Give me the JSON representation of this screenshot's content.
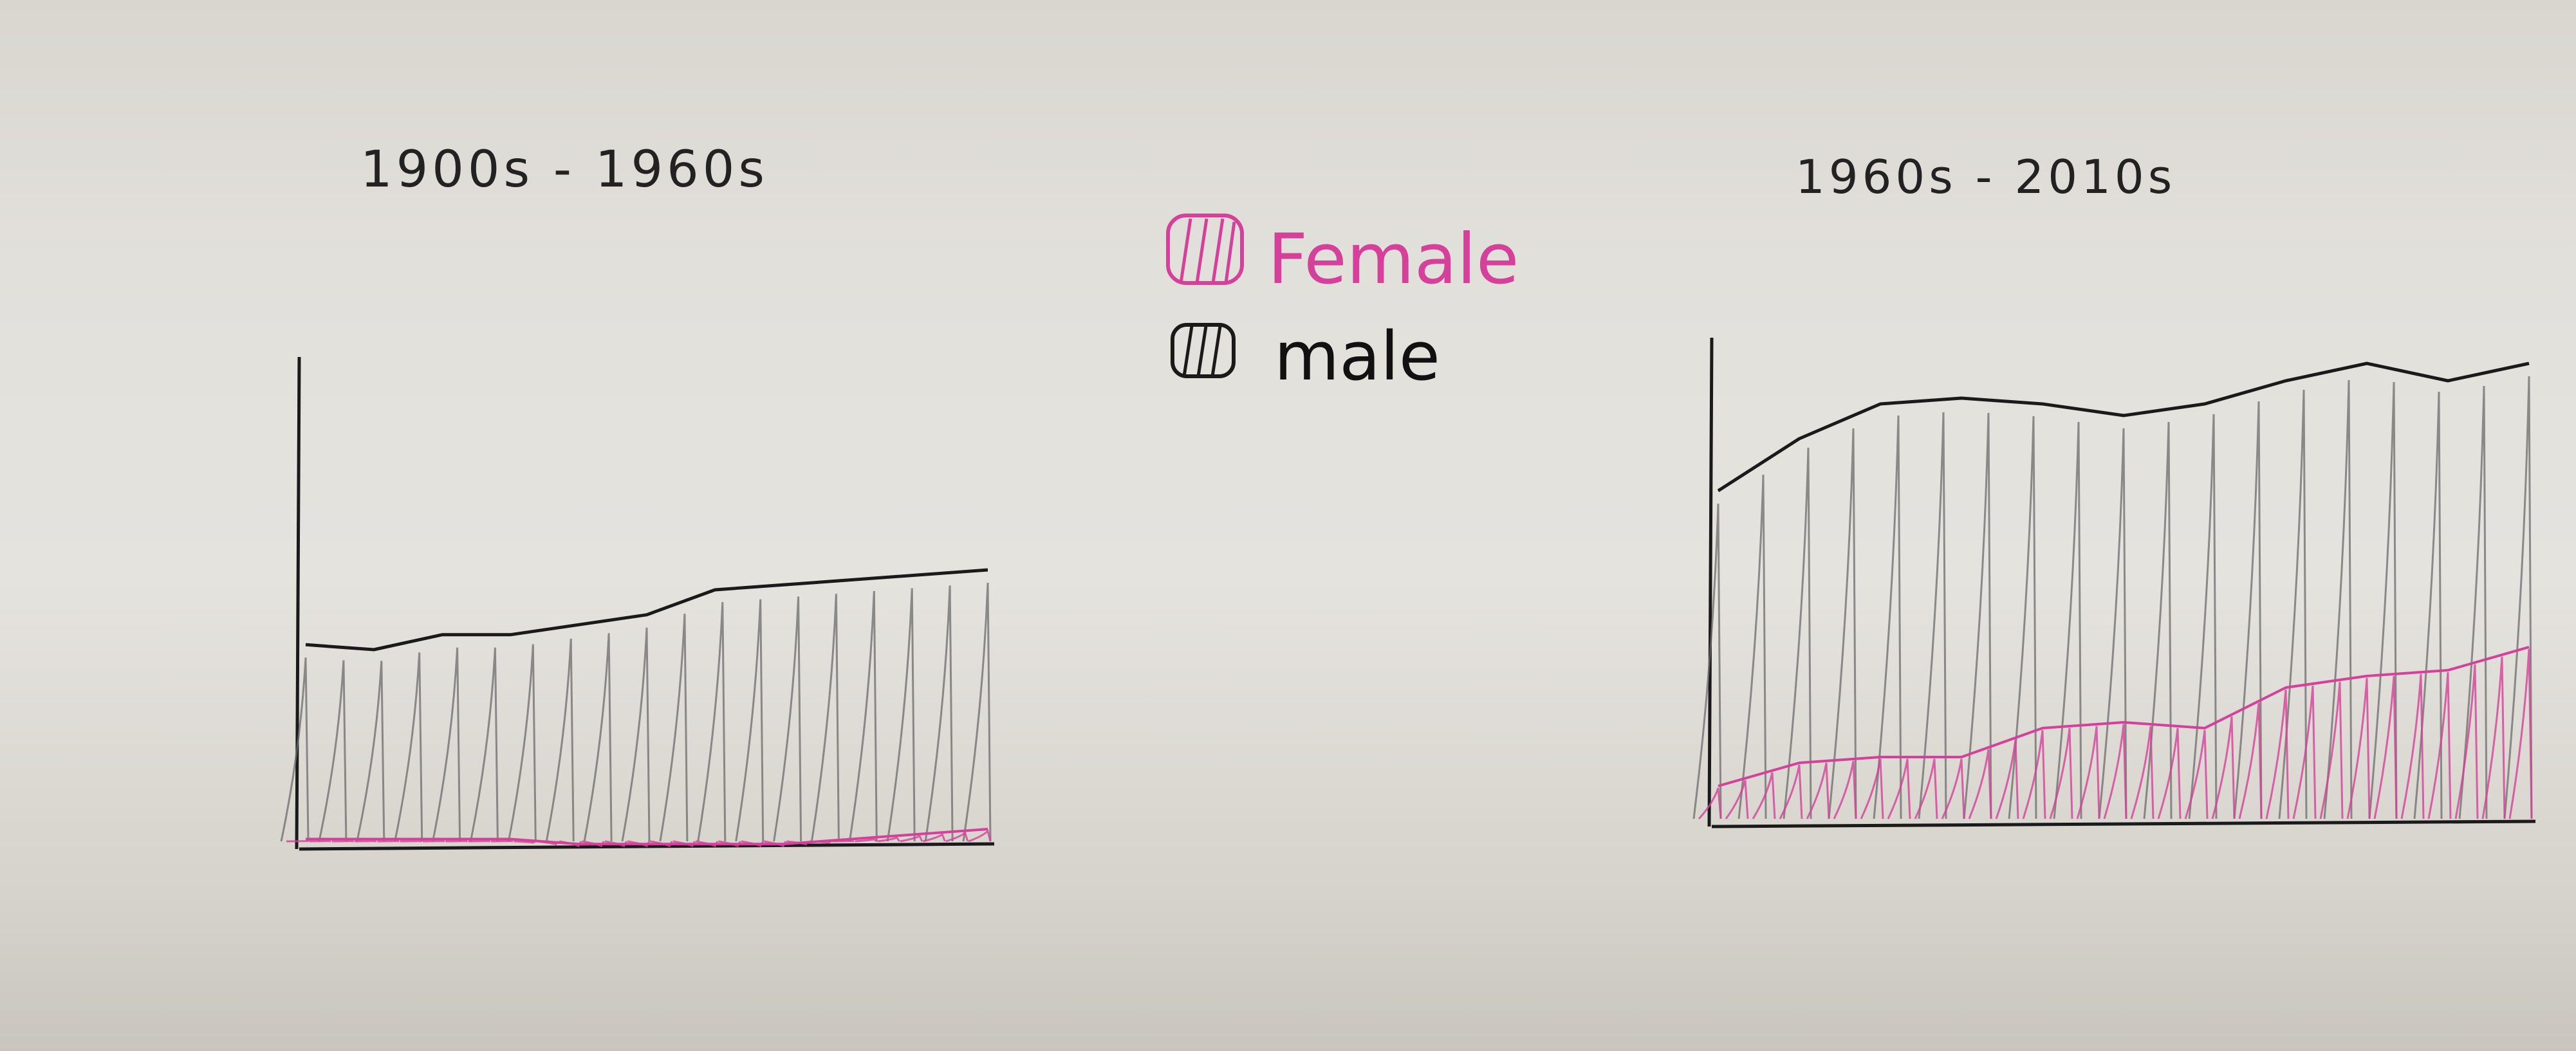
{
  "legend": {
    "items": [
      {
        "label": "Female",
        "color": "#d4409a"
      },
      {
        "label": "male",
        "color": "#1a1a1a"
      }
    ]
  },
  "colors": {
    "female": "#d4409a",
    "male": "#1a1a1a",
    "hatch": "#6b6b6b"
  },
  "chart_data": [
    {
      "type": "area",
      "title": "1900s - 1960s",
      "x": [
        0,
        1,
        2,
        3,
        4,
        5,
        6,
        7,
        8,
        9,
        10
      ],
      "series": [
        {
          "name": "male",
          "values": [
            41,
            40,
            43,
            43,
            45,
            47,
            52,
            53,
            54,
            55,
            56
          ]
        },
        {
          "name": "Female",
          "values": [
            2,
            2,
            2,
            2,
            1,
            1,
            1,
            1,
            2,
            3,
            4
          ]
        }
      ],
      "ylim": [
        0,
        80
      ],
      "grid": false
    },
    {
      "type": "area",
      "title": "1960s - 2010s",
      "x": [
        0,
        1,
        2,
        3,
        4,
        5,
        6,
        7,
        8,
        9,
        10
      ],
      "series": [
        {
          "name": "male",
          "values": [
            58,
            67,
            73,
            74,
            73,
            71,
            73,
            77,
            80,
            77,
            80
          ]
        },
        {
          "name": "Female",
          "values": [
            7,
            11,
            12,
            12,
            17,
            18,
            17,
            24,
            26,
            27,
            31
          ]
        }
      ],
      "ylim": [
        0,
        80
      ],
      "grid": false
    }
  ]
}
